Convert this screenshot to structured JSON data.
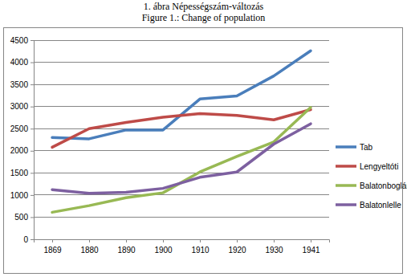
{
  "chart_data": {
    "type": "line",
    "title": "1. ábra Népességszám-változás",
    "subtitle": "Figure 1.: Change of population",
    "categories": [
      "1869",
      "1880",
      "1890",
      "1900",
      "1910",
      "1920",
      "1930",
      "1941"
    ],
    "series": [
      {
        "name": "Tab",
        "color": "#4a7ebb",
        "values": [
          2300,
          2270,
          2470,
          2470,
          3170,
          3240,
          3690,
          4260
        ]
      },
      {
        "name": "Lengyeltóti",
        "color": "#be4b48",
        "values": [
          2080,
          2500,
          2640,
          2760,
          2840,
          2800,
          2700,
          2930
        ]
      },
      {
        "name": "Balatonboglár",
        "color": "#98b954",
        "values": [
          610,
          760,
          940,
          1050,
          1520,
          1870,
          2200,
          2980
        ]
      },
      {
        "name": "Balatonlelle",
        "color": "#7d60a0",
        "values": [
          1120,
          1040,
          1060,
          1150,
          1400,
          1520,
          2150,
          2610
        ]
      }
    ],
    "ylim": [
      0,
      4500
    ],
    "yticks": [
      0,
      500,
      1000,
      1500,
      2000,
      2500,
      3000,
      3500,
      4000,
      4500
    ],
    "grid": true,
    "legend": "right"
  }
}
